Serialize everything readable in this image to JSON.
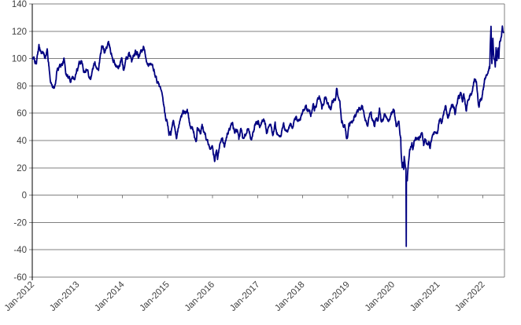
{
  "chart_data": {
    "type": "line",
    "title": "",
    "legend": false,
    "grid": true,
    "colors": {
      "line": "#000080",
      "gridline": "#808080",
      "axis": "#000000",
      "label": "#3f3f3f",
      "background": "#ffffff"
    },
    "y_axis": {
      "min": -60,
      "max": 140,
      "step": 20,
      "tick_labels": [
        "140",
        "120",
        "100",
        "80",
        "60",
        "40",
        "20",
        "0",
        "-20",
        "-40",
        "-60"
      ]
    },
    "x_axis": {
      "tick_labels": [
        "Jan-2012",
        "Jan-2013",
        "Jan-2014",
        "Jan-2015",
        "Jan-2016",
        "Jan-2017",
        "Jan-2018",
        "Jan-2019",
        "Jan-2020",
        "Jan-2021",
        "Jan-2022"
      ],
      "first_year": 2012,
      "label_rotation_deg": -45
    },
    "series": [
      {
        "points": [
          [
            "2012-01-03",
            99.8
          ],
          [
            "2012-01-20",
            98.5
          ],
          [
            "2012-02-02",
            96.4
          ],
          [
            "2012-02-24",
            108.0
          ],
          [
            "2012-03-14",
            105.4
          ],
          [
            "2012-04-10",
            101.0
          ],
          [
            "2012-05-01",
            106.2
          ],
          [
            "2012-05-18",
            91.5
          ],
          [
            "2012-06-01",
            83.2
          ],
          [
            "2012-06-28",
            77.7
          ],
          [
            "2012-07-20",
            91.4
          ],
          [
            "2012-08-15",
            94.3
          ],
          [
            "2012-09-14",
            99.0
          ],
          [
            "2012-10-03",
            88.1
          ],
          [
            "2012-11-07",
            84.4
          ],
          [
            "2012-11-19",
            89.3
          ],
          [
            "2012-12-10",
            85.6
          ],
          [
            "2012-12-31",
            91.8
          ],
          [
            "2013-01-30",
            97.9
          ],
          [
            "2013-02-21",
            92.8
          ],
          [
            "2013-03-14",
            93.0
          ],
          [
            "2013-04-17",
            86.7
          ],
          [
            "2013-05-17",
            96.0
          ],
          [
            "2013-06-21",
            93.7
          ],
          [
            "2013-07-19",
            108.0
          ],
          [
            "2013-08-07",
            104.4
          ],
          [
            "2013-09-06",
            110.5
          ],
          [
            "2013-10-21",
            99.2
          ],
          [
            "2013-11-27",
            92.3
          ],
          [
            "2013-12-27",
            100.3
          ],
          [
            "2014-01-09",
            91.7
          ],
          [
            "2014-02-19",
            103.3
          ],
          [
            "2014-03-17",
            98.1
          ],
          [
            "2014-04-16",
            103.8
          ],
          [
            "2014-05-12",
            100.6
          ],
          [
            "2014-06-20",
            107.3
          ],
          [
            "2014-07-15",
            99.9
          ],
          [
            "2014-08-21",
            93.9
          ],
          [
            "2014-09-10",
            91.7
          ],
          [
            "2014-10-16",
            81.8
          ],
          [
            "2014-11-13",
            74.2
          ],
          [
            "2014-11-28",
            66.2
          ],
          [
            "2014-12-16",
            55.9
          ],
          [
            "2014-12-31",
            53.3
          ],
          [
            "2015-01-13",
            45.9
          ],
          [
            "2015-01-28",
            44.4
          ],
          [
            "2015-02-17",
            53.5
          ],
          [
            "2015-03-17",
            43.5
          ],
          [
            "2015-04-06",
            52.1
          ],
          [
            "2015-05-06",
            60.9
          ],
          [
            "2015-06-10",
            61.4
          ],
          [
            "2015-07-07",
            52.3
          ],
          [
            "2015-08-14",
            42.5
          ],
          [
            "2015-08-24",
            38.2
          ],
          [
            "2015-08-31",
            49.2
          ],
          [
            "2015-09-24",
            44.9
          ],
          [
            "2015-10-09",
            49.6
          ],
          [
            "2015-11-20",
            40.4
          ],
          [
            "2015-12-07",
            37.7
          ],
          [
            "2015-12-21",
            34.7
          ],
          [
            "2015-12-31",
            37.0
          ],
          [
            "2016-01-20",
            26.6
          ],
          [
            "2016-02-03",
            32.3
          ],
          [
            "2016-02-11",
            26.2
          ],
          [
            "2016-03-04",
            35.9
          ],
          [
            "2016-03-22",
            41.5
          ],
          [
            "2016-04-05",
            35.9
          ],
          [
            "2016-04-29",
            45.9
          ],
          [
            "2016-05-31",
            49.1
          ],
          [
            "2016-06-08",
            51.2
          ],
          [
            "2016-06-27",
            46.3
          ],
          [
            "2016-07-20",
            44.9
          ],
          [
            "2016-08-02",
            39.5
          ],
          [
            "2016-08-19",
            48.5
          ],
          [
            "2016-09-01",
            43.2
          ],
          [
            "2016-09-28",
            47.0
          ],
          [
            "2016-10-19",
            51.6
          ],
          [
            "2016-11-04",
            44.1
          ],
          [
            "2016-11-14",
            43.3
          ],
          [
            "2016-12-06",
            50.9
          ],
          [
            "2016-12-28",
            54.0
          ],
          [
            "2017-01-18",
            52.3
          ],
          [
            "2017-02-23",
            54.4
          ],
          [
            "2017-03-14",
            47.7
          ],
          [
            "2017-04-12",
            53.4
          ],
          [
            "2017-05-04",
            45.5
          ],
          [
            "2017-05-23",
            51.5
          ],
          [
            "2017-06-21",
            42.5
          ],
          [
            "2017-07-31",
            50.2
          ],
          [
            "2017-08-17",
            47.1
          ],
          [
            "2017-08-31",
            47.2
          ],
          [
            "2017-09-25",
            52.2
          ],
          [
            "2017-10-06",
            49.3
          ],
          [
            "2017-11-06",
            57.4
          ],
          [
            "2017-11-16",
            55.1
          ],
          [
            "2017-12-12",
            57.1
          ],
          [
            "2017-12-29",
            60.4
          ],
          [
            "2018-01-26",
            66.1
          ],
          [
            "2018-02-09",
            59.2
          ],
          [
            "2018-02-26",
            63.9
          ],
          [
            "2018-03-08",
            60.1
          ],
          [
            "2018-03-26",
            65.6
          ],
          [
            "2018-04-06",
            62.1
          ],
          [
            "2018-05-21",
            72.2
          ],
          [
            "2018-06-06",
            64.7
          ],
          [
            "2018-06-18",
            65.9
          ],
          [
            "2018-06-29",
            74.2
          ],
          [
            "2018-07-18",
            67.8
          ],
          [
            "2018-08-15",
            65.0
          ],
          [
            "2018-09-04",
            69.9
          ],
          [
            "2018-09-24",
            72.1
          ],
          [
            "2018-10-03",
            76.4
          ],
          [
            "2018-10-29",
            67.0
          ],
          [
            "2018-11-13",
            55.7
          ],
          [
            "2018-11-29",
            51.5
          ],
          [
            "2018-12-07",
            52.6
          ],
          [
            "2018-12-24",
            42.5
          ],
          [
            "2018-12-31",
            45.4
          ],
          [
            "2019-01-11",
            51.6
          ],
          [
            "2019-02-04",
            54.6
          ],
          [
            "2019-02-22",
            57.3
          ],
          [
            "2019-03-08",
            56.1
          ],
          [
            "2019-04-08",
            64.4
          ],
          [
            "2019-04-23",
            66.3
          ],
          [
            "2019-05-13",
            61.0
          ],
          [
            "2019-06-05",
            51.7
          ],
          [
            "2019-06-12",
            51.1
          ],
          [
            "2019-06-28",
            58.5
          ],
          [
            "2019-07-10",
            60.4
          ],
          [
            "2019-07-18",
            55.3
          ],
          [
            "2019-08-07",
            51.1
          ],
          [
            "2019-08-13",
            57.1
          ],
          [
            "2019-09-03",
            53.9
          ],
          [
            "2019-09-16",
            62.9
          ],
          [
            "2019-10-03",
            52.5
          ],
          [
            "2019-10-25",
            56.7
          ],
          [
            "2019-11-20",
            57.1
          ],
          [
            "2019-11-29",
            55.2
          ],
          [
            "2019-12-31",
            61.1
          ],
          [
            "2020-01-06",
            63.3
          ],
          [
            "2020-01-31",
            51.6
          ],
          [
            "2020-02-20",
            53.8
          ],
          [
            "2020-02-28",
            44.8
          ],
          [
            "2020-03-06",
            41.3
          ],
          [
            "2020-03-09",
            31.1
          ],
          [
            "2020-03-18",
            20.4
          ],
          [
            "2020-03-25",
            24.5
          ],
          [
            "2020-03-30",
            20.1
          ],
          [
            "2020-04-03",
            28.3
          ],
          [
            "2020-04-09",
            22.8
          ],
          [
            "2020-04-17",
            18.3
          ],
          [
            "2020-04-20",
            -37.6
          ],
          [
            "2020-04-21",
            10.0
          ],
          [
            "2020-04-28",
            12.3
          ],
          [
            "2020-05-08",
            24.7
          ],
          [
            "2020-05-18",
            31.8
          ],
          [
            "2020-06-05",
            39.5
          ],
          [
            "2020-06-12",
            36.3
          ],
          [
            "2020-06-22",
            40.5
          ],
          [
            "2020-07-21",
            41.9
          ],
          [
            "2020-08-05",
            42.2
          ],
          [
            "2020-08-26",
            43.4
          ],
          [
            "2020-09-08",
            36.8
          ],
          [
            "2020-09-18",
            41.1
          ],
          [
            "2020-10-02",
            37.0
          ],
          [
            "2020-10-20",
            41.5
          ],
          [
            "2020-10-30",
            35.8
          ],
          [
            "2020-11-11",
            41.4
          ],
          [
            "2020-11-24",
            44.9
          ],
          [
            "2020-12-10",
            46.8
          ],
          [
            "2020-12-31",
            48.5
          ],
          [
            "2021-01-13",
            53.0
          ],
          [
            "2021-02-01",
            53.6
          ],
          [
            "2021-02-24",
            63.2
          ],
          [
            "2021-03-05",
            66.1
          ],
          [
            "2021-03-23",
            57.8
          ],
          [
            "2021-04-14",
            63.1
          ],
          [
            "2021-05-05",
            65.6
          ],
          [
            "2021-05-20",
            62.0
          ],
          [
            "2021-06-16",
            72.2
          ],
          [
            "2021-07-06",
            74.6
          ],
          [
            "2021-07-19",
            66.4
          ],
          [
            "2021-07-30",
            73.9
          ],
          [
            "2021-08-20",
            62.3
          ],
          [
            "2021-09-02",
            70.0
          ],
          [
            "2021-09-27",
            75.5
          ],
          [
            "2021-10-26",
            84.7
          ],
          [
            "2021-11-09",
            84.2
          ],
          [
            "2021-11-26",
            68.2
          ],
          [
            "2021-12-01",
            65.6
          ],
          [
            "2021-12-09",
            70.9
          ],
          [
            "2021-12-20",
            68.2
          ],
          [
            "2021-12-31",
            75.2
          ],
          [
            "2022-01-14",
            83.8
          ],
          [
            "2022-01-28",
            86.8
          ],
          [
            "2022-02-09",
            89.7
          ],
          [
            "2022-02-18",
            91.1
          ],
          [
            "2022-02-25",
            91.6
          ],
          [
            "2022-03-02",
            110.6
          ],
          [
            "2022-03-08",
            123.7
          ],
          [
            "2022-03-15",
            96.4
          ],
          [
            "2022-03-23",
            115.0
          ],
          [
            "2022-03-29",
            104.2
          ],
          [
            "2022-04-08",
            98.3
          ],
          [
            "2022-04-11",
            94.3
          ],
          [
            "2022-04-18",
            108.2
          ],
          [
            "2022-04-25",
            98.5
          ],
          [
            "2022-05-04",
            107.8
          ],
          [
            "2022-05-10",
            99.8
          ],
          [
            "2022-05-17",
            112.4
          ],
          [
            "2022-05-25",
            110.3
          ],
          [
            "2022-06-03",
            118.9
          ],
          [
            "2022-06-08",
            122.1
          ],
          [
            "2022-06-14",
            118.9
          ],
          [
            "2022-06-16",
            117.6
          ]
        ]
      }
    ]
  }
}
